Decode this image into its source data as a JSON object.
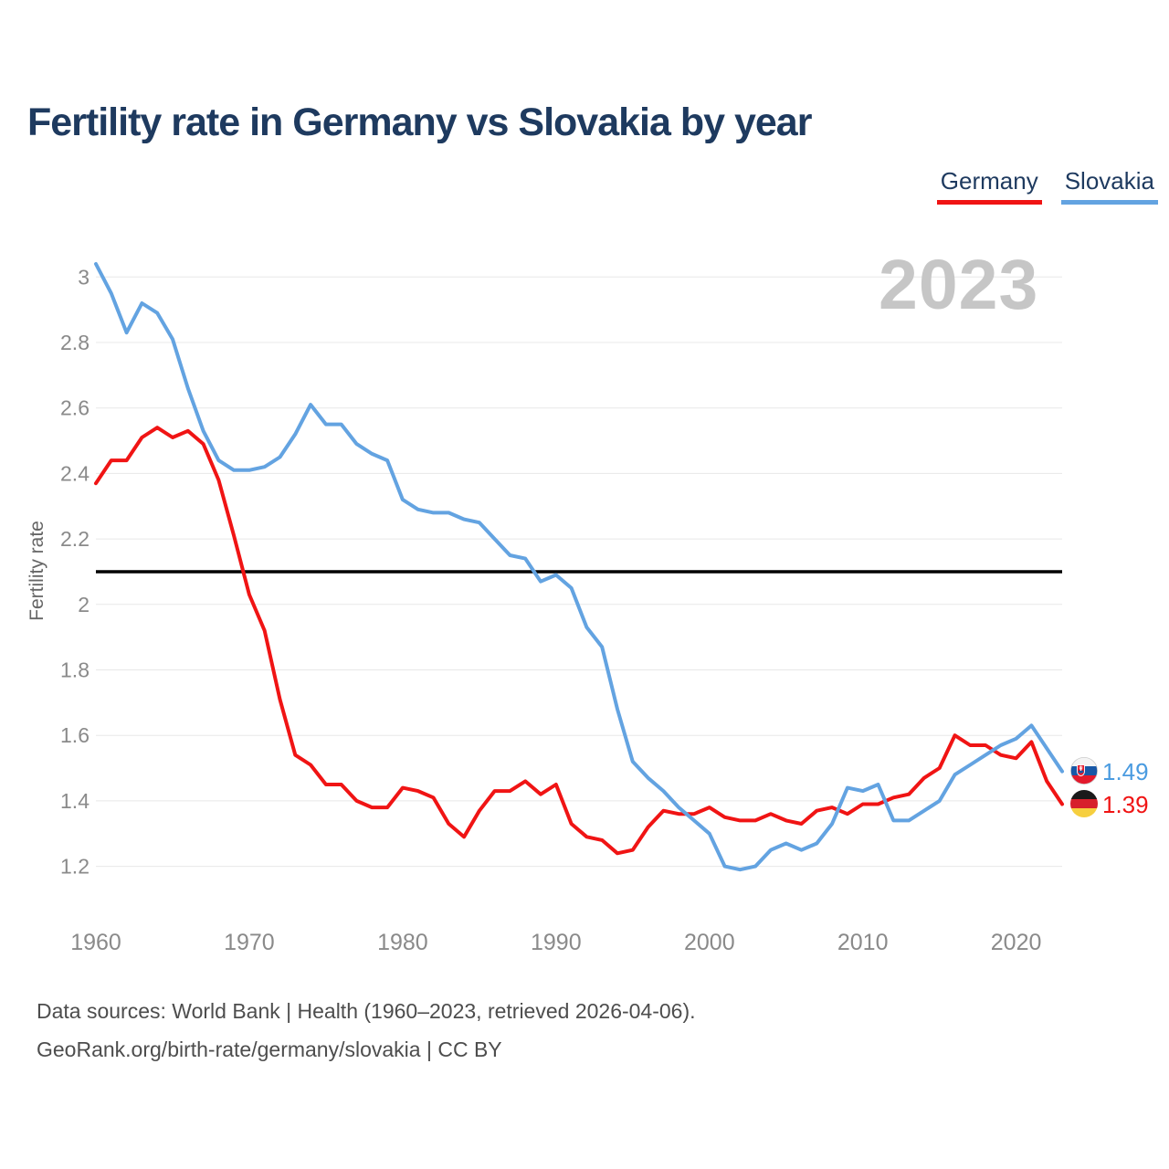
{
  "title": "Fertility rate in Germany vs Slovakia by year",
  "watermark": "2023",
  "legend": [
    {
      "label": "Germany",
      "color": "#f01414"
    },
    {
      "label": "Slovakia",
      "color": "#63a3e1"
    }
  ],
  "end_labels": [
    {
      "series": "Slovakia",
      "value": "1.49",
      "flag": "slovakia-flag",
      "color": "#4a9be0"
    },
    {
      "series": "Germany",
      "value": "1.39",
      "flag": "germany-flag",
      "color": "#f01414"
    }
  ],
  "footer": {
    "line1": "Data sources: World Bank | Health (1960–2023, retrieved 2026-04-06).",
    "line2": "GeoRank.org/birth-rate/germany/slovakia | CC BY"
  },
  "colors": {
    "germany_red": "#f01414",
    "slovakia_blue": "#63a3e1",
    "replacement_line": "#000000",
    "title_navy": "#1e3a5f",
    "grid": "#e8e8e8",
    "tick_gray": "#8a8a8a",
    "footer_gray": "#4d4d4d",
    "watermark_gray": "#c6c6c6"
  },
  "chart_data": {
    "type": "line",
    "title": "Fertility rate in Germany vs Slovakia by year",
    "xlabel": "",
    "ylabel": "Fertility rate",
    "grid": true,
    "legend_position": "top-right",
    "xlim": [
      1960,
      2023
    ],
    "ylim": [
      1.2,
      3.0
    ],
    "xticks": [
      1960,
      1970,
      1980,
      1990,
      2000,
      2010,
      2020
    ],
    "yticks": [
      1.2,
      1.4,
      1.6,
      1.8,
      2,
      2.2,
      2.4,
      2.6,
      2.8,
      3
    ],
    "reference_line": {
      "value": 2.1,
      "color": "#000000"
    },
    "x": [
      1960,
      1961,
      1962,
      1963,
      1964,
      1965,
      1966,
      1967,
      1968,
      1969,
      1970,
      1971,
      1972,
      1973,
      1974,
      1975,
      1976,
      1977,
      1978,
      1979,
      1980,
      1981,
      1982,
      1983,
      1984,
      1985,
      1986,
      1987,
      1988,
      1989,
      1990,
      1991,
      1992,
      1993,
      1994,
      1995,
      1996,
      1997,
      1998,
      1999,
      2000,
      2001,
      2002,
      2003,
      2004,
      2005,
      2006,
      2007,
      2008,
      2009,
      2010,
      2011,
      2012,
      2013,
      2014,
      2015,
      2016,
      2017,
      2018,
      2019,
      2020,
      2021,
      2022,
      2023
    ],
    "series": [
      {
        "name": "Germany",
        "color": "#f01414",
        "final_value": 1.39,
        "values": [
          2.37,
          2.44,
          2.44,
          2.51,
          2.54,
          2.51,
          2.53,
          2.49,
          2.38,
          2.21,
          2.03,
          1.92,
          1.71,
          1.54,
          1.51,
          1.45,
          1.45,
          1.4,
          1.38,
          1.38,
          1.44,
          1.43,
          1.41,
          1.33,
          1.29,
          1.37,
          1.43,
          1.43,
          1.46,
          1.42,
          1.45,
          1.33,
          1.29,
          1.28,
          1.24,
          1.25,
          1.32,
          1.37,
          1.36,
          1.36,
          1.38,
          1.35,
          1.34,
          1.34,
          1.36,
          1.34,
          1.33,
          1.37,
          1.38,
          1.36,
          1.39,
          1.39,
          1.41,
          1.42,
          1.47,
          1.5,
          1.6,
          1.57,
          1.57,
          1.54,
          1.53,
          1.58,
          1.46,
          1.39
        ]
      },
      {
        "name": "Slovakia",
        "color": "#63a3e1",
        "final_value": 1.49,
        "values": [
          3.04,
          2.95,
          2.83,
          2.92,
          2.89,
          2.81,
          2.66,
          2.53,
          2.44,
          2.41,
          2.41,
          2.42,
          2.45,
          2.52,
          2.61,
          2.55,
          2.55,
          2.49,
          2.46,
          2.44,
          2.32,
          2.29,
          2.28,
          2.28,
          2.26,
          2.25,
          2.2,
          2.15,
          2.14,
          2.07,
          2.09,
          2.05,
          1.93,
          1.87,
          1.68,
          1.52,
          1.47,
          1.43,
          1.38,
          1.34,
          1.3,
          1.2,
          1.19,
          1.2,
          1.25,
          1.27,
          1.25,
          1.27,
          1.33,
          1.44,
          1.43,
          1.45,
          1.34,
          1.34,
          1.37,
          1.4,
          1.48,
          1.51,
          1.54,
          1.57,
          1.59,
          1.63,
          1.56,
          1.49
        ]
      }
    ]
  }
}
